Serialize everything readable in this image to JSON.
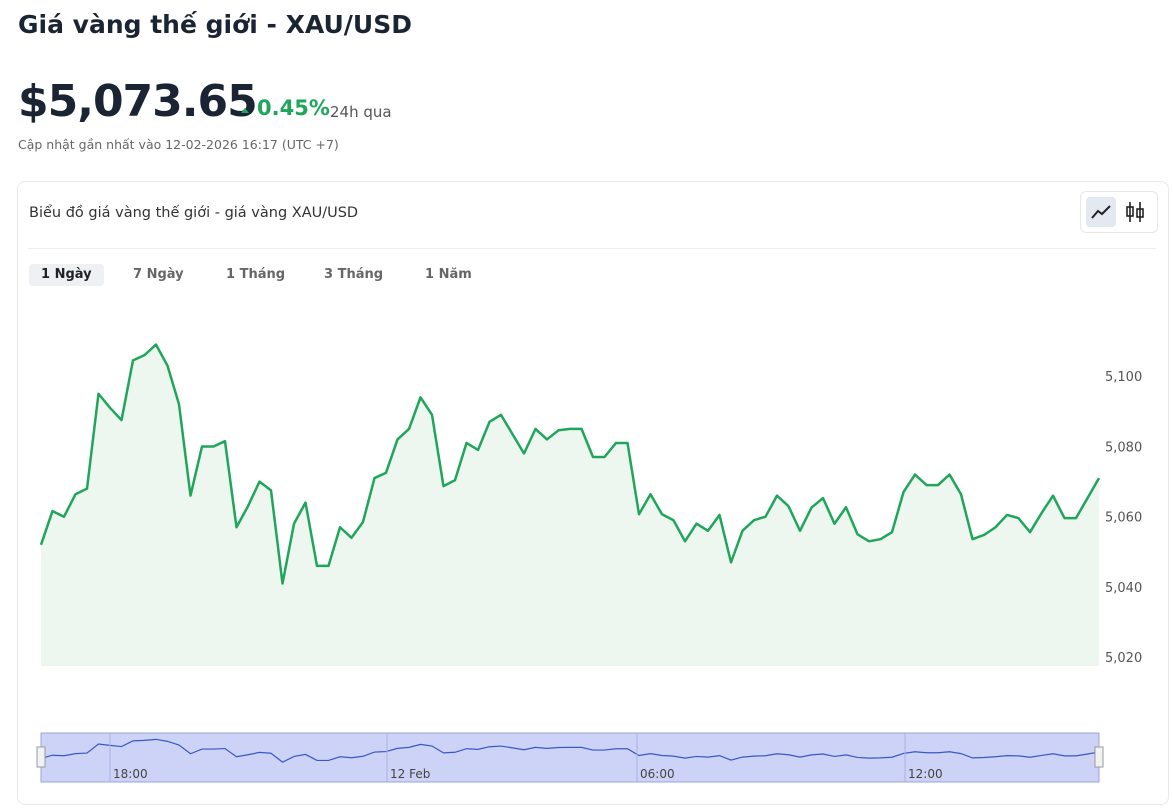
{
  "header": {
    "title": "Giá vàng thế giới - XAU/USD",
    "price": "$5,073.65",
    "change": "0.45%",
    "change_period": "24h qua",
    "updated": "Cập nhật gần nhất vào 12-02-2026 16:17 (UTC +7)"
  },
  "panel": {
    "title": "Biểu đồ giá vàng thế giới - giá vàng XAU/USD",
    "tabs": [
      "1 Ngày",
      "7 Ngày",
      "1 Tháng",
      "3 Tháng",
      "1 Năm"
    ]
  },
  "chart_data": {
    "type": "line",
    "color": "#1fa65a",
    "fill": "#edf7f0",
    "values": [
      5052,
      5061.6,
      5060,
      5066.4,
      5068,
      5095,
      5091,
      5087.5,
      5104.5,
      5106,
      5109,
      5103,
      5092,
      5066,
      5080,
      5080,
      5081.5,
      5057,
      5063,
      5070,
      5067.5,
      5041,
      5058,
      5064,
      5046,
      5046,
      5057,
      5054,
      5058.5,
      5071,
      5072.5,
      5082,
      5085,
      5094,
      5089,
      5068.7,
      5070.4,
      5081,
      5079,
      5087,
      5089,
      5083.5,
      5078,
      5085,
      5082,
      5084.6,
      5085,
      5085,
      5077,
      5077,
      5081,
      5081,
      5060.7,
      5066.4,
      5060.7,
      5059,
      5053,
      5058,
      5056,
      5060.5,
      5047,
      5056,
      5059,
      5060,
      5066,
      5063,
      5056,
      5062.6,
      5065.3,
      5058,
      5062.7,
      5055,
      5053,
      5053.6,
      5055.6,
      5067,
      5072,
      5069,
      5069,
      5072,
      5066.4,
      5053.6,
      5054.8,
      5057,
      5060.5,
      5059.6,
      5055.6,
      5061,
      5066,
      5059.6,
      5059.6,
      5065.3,
      5071
    ],
    "ylim": [
      5017.5,
      5116
    ],
    "yticks": [
      {
        "value": 5020,
        "label": "5,020"
      },
      {
        "value": 5040,
        "label": "5,040"
      },
      {
        "value": 5060,
        "label": "5,060"
      },
      {
        "value": 5080,
        "label": "5,080"
      },
      {
        "value": 5100,
        "label": "5,100"
      }
    ],
    "navigator_labels": [
      "18:00",
      "12 Feb",
      "06:00",
      "12:00"
    ]
  }
}
